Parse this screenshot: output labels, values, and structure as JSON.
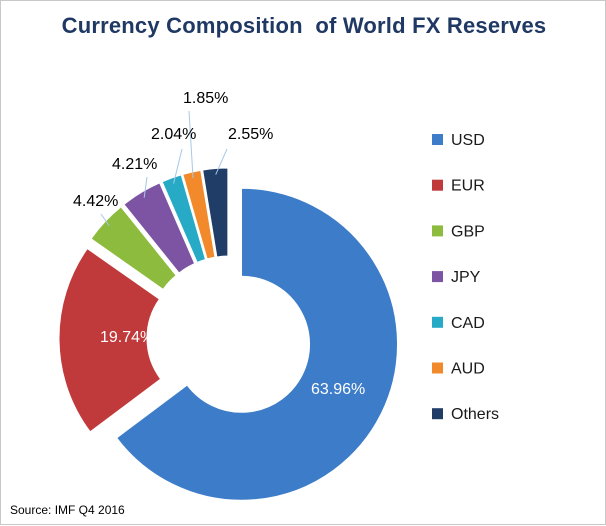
{
  "chart_data": {
    "type": "pie",
    "style": "donut-exploded",
    "title": "Currency Composition  of World FX Reserves",
    "categories": [
      "USD",
      "EUR",
      "GBP",
      "JPY",
      "CAD",
      "AUD",
      "Others"
    ],
    "values": [
      63.96,
      19.74,
      4.42,
      4.21,
      2.04,
      1.85,
      2.55
    ],
    "data_labels": [
      "63.96%",
      "19.74%",
      "4.42%",
      "4.21%",
      "2.04%",
      "1.85%",
      "2.55%"
    ],
    "colors": [
      "#3d7cc9",
      "#c0393b",
      "#8dbb3d",
      "#7d54a3",
      "#27aac6",
      "#f28a2b",
      "#1f3d66"
    ],
    "legend_position": "right",
    "source": "Source: IMF Q4 2016"
  }
}
